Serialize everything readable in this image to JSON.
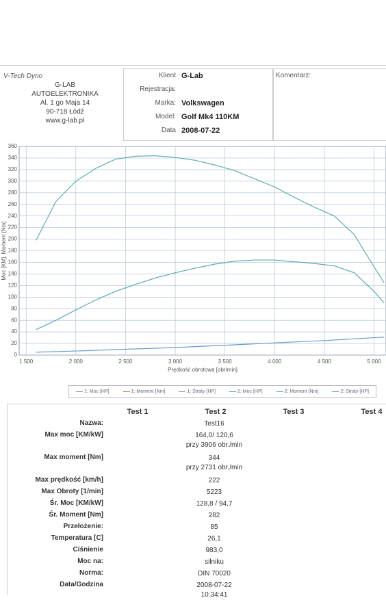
{
  "header": {
    "brand": "V-Tech Dyno",
    "company": [
      "G-LAB",
      "AUTOELEKTRONIKA",
      "Al. 1 go Maja 14",
      "90-718 Łódź",
      "www.g-lab.pl"
    ],
    "fields": [
      {
        "label": "Klient",
        "value": "G-Lab"
      },
      {
        "label": "Rejestracja:"
      },
      {
        "label": "Marka:",
        "value": "Volkswagen"
      },
      {
        "label": "Model:",
        "value": "Golf Mk4 110KM"
      },
      {
        "label": "Data",
        "value": "2008-07-22"
      }
    ],
    "comment_label": "Komentarz:"
  },
  "chart_data": {
    "type": "line",
    "x_label": "Prędkość obrotowa [obr/min]",
    "y_label": "Moc [KM], Moment [Nm]",
    "xlim": [
      1430,
      5120
    ],
    "xticks": [
      {
        "value": 1500,
        "label": "1 500"
      },
      {
        "value": 2000,
        "label": "2 000"
      },
      {
        "value": 2500,
        "label": "2 500"
      },
      {
        "value": 3000,
        "label": "3 000"
      },
      {
        "value": 3500,
        "label": "3 500"
      },
      {
        "value": 4000,
        "label": "4 000"
      },
      {
        "value": 4500,
        "label": "4 500"
      },
      {
        "value": 5000,
        "label": "5 000"
      }
    ],
    "ylim": [
      0,
      360
    ],
    "yticks": [
      0,
      20,
      40,
      60,
      80,
      100,
      120,
      140,
      160,
      180,
      200,
      220,
      240,
      260,
      280,
      300,
      320,
      340,
      360
    ],
    "grid": true,
    "series": [
      {
        "name": "1: Moc [HP]",
        "color": "#8a9aa0",
        "x": [],
        "values": []
      },
      {
        "name": "1: Moment [Nm]",
        "color": "#c77a6a",
        "x": [],
        "values": []
      },
      {
        "name": "1: Straty [HP]",
        "color": "#9aa07a",
        "x": [],
        "values": []
      },
      {
        "name": "2: Moc [HP]",
        "color": "#5aa8b4",
        "x": [
          1600,
          1800,
          2000,
          2200,
          2400,
          2600,
          2800,
          3000,
          3200,
          3400,
          3600,
          3800,
          4000,
          4200,
          4400,
          4600,
          4800,
          5000,
          5100
        ],
        "values": [
          44,
          60,
          78,
          95,
          110,
          122,
          133,
          142,
          150,
          157,
          162,
          164,
          164,
          161,
          158,
          154,
          142,
          110,
          90
        ]
      },
      {
        "name": "2: Moment [Nm]",
        "color": "#5cb0b0",
        "x": [
          1600,
          1800,
          2000,
          2200,
          2400,
          2600,
          2800,
          3000,
          3200,
          3400,
          3600,
          3800,
          4000,
          4200,
          4400,
          4600,
          4800,
          5000,
          5100
        ],
        "values": [
          198,
          265,
          300,
          322,
          338,
          343,
          344,
          341,
          336,
          328,
          318,
          304,
          290,
          272,
          255,
          240,
          208,
          152,
          125
        ]
      },
      {
        "name": "2: Straty [HP]",
        "color": "#6a9ad0",
        "x": [
          1600,
          2000,
          2500,
          3000,
          3500,
          4000,
          4500,
          5000,
          5100
        ],
        "values": [
          5,
          7,
          10,
          13,
          17,
          21,
          25,
          30,
          31
        ]
      }
    ]
  },
  "table": {
    "columns": [
      "Test 1",
      "Test 2",
      "Test 3",
      "Test 4"
    ],
    "rows": [
      {
        "label": "Nazwa:",
        "values": [
          "Test16"
        ]
      },
      {
        "label": "Max moc [KM/kW]",
        "values": [
          "164,0/ 120,6",
          "przy 3906 obr./min"
        ]
      },
      {
        "label": "Max moment [Nm]",
        "values": [
          "344",
          "przy 2731 obr./min"
        ]
      },
      {
        "label": "Max prędkość [km/h]",
        "values": [
          "222"
        ]
      },
      {
        "label": "Max Obroty [1/min]",
        "values": [
          "5223"
        ]
      },
      {
        "label": "Śr. Moc [KM/kW]",
        "values": [
          "128,8 / 94,7"
        ]
      },
      {
        "label": "Śr. Moment [Nm]",
        "values": [
          "282"
        ]
      },
      {
        "label": "Przełożenie:",
        "values": [
          "85"
        ]
      },
      {
        "label": "Temperatura [C]",
        "values": [
          "26,1"
        ]
      },
      {
        "label": "Ciśnienie",
        "values": [
          "983,0"
        ]
      },
      {
        "label": "Moc na:",
        "values": [
          "silniku"
        ]
      },
      {
        "label": "Norma:",
        "values": [
          "DIN 70020"
        ]
      },
      {
        "label": "Data/Godzina",
        "values": [
          "2008-07-22",
          "10:34:41"
        ]
      }
    ]
  }
}
